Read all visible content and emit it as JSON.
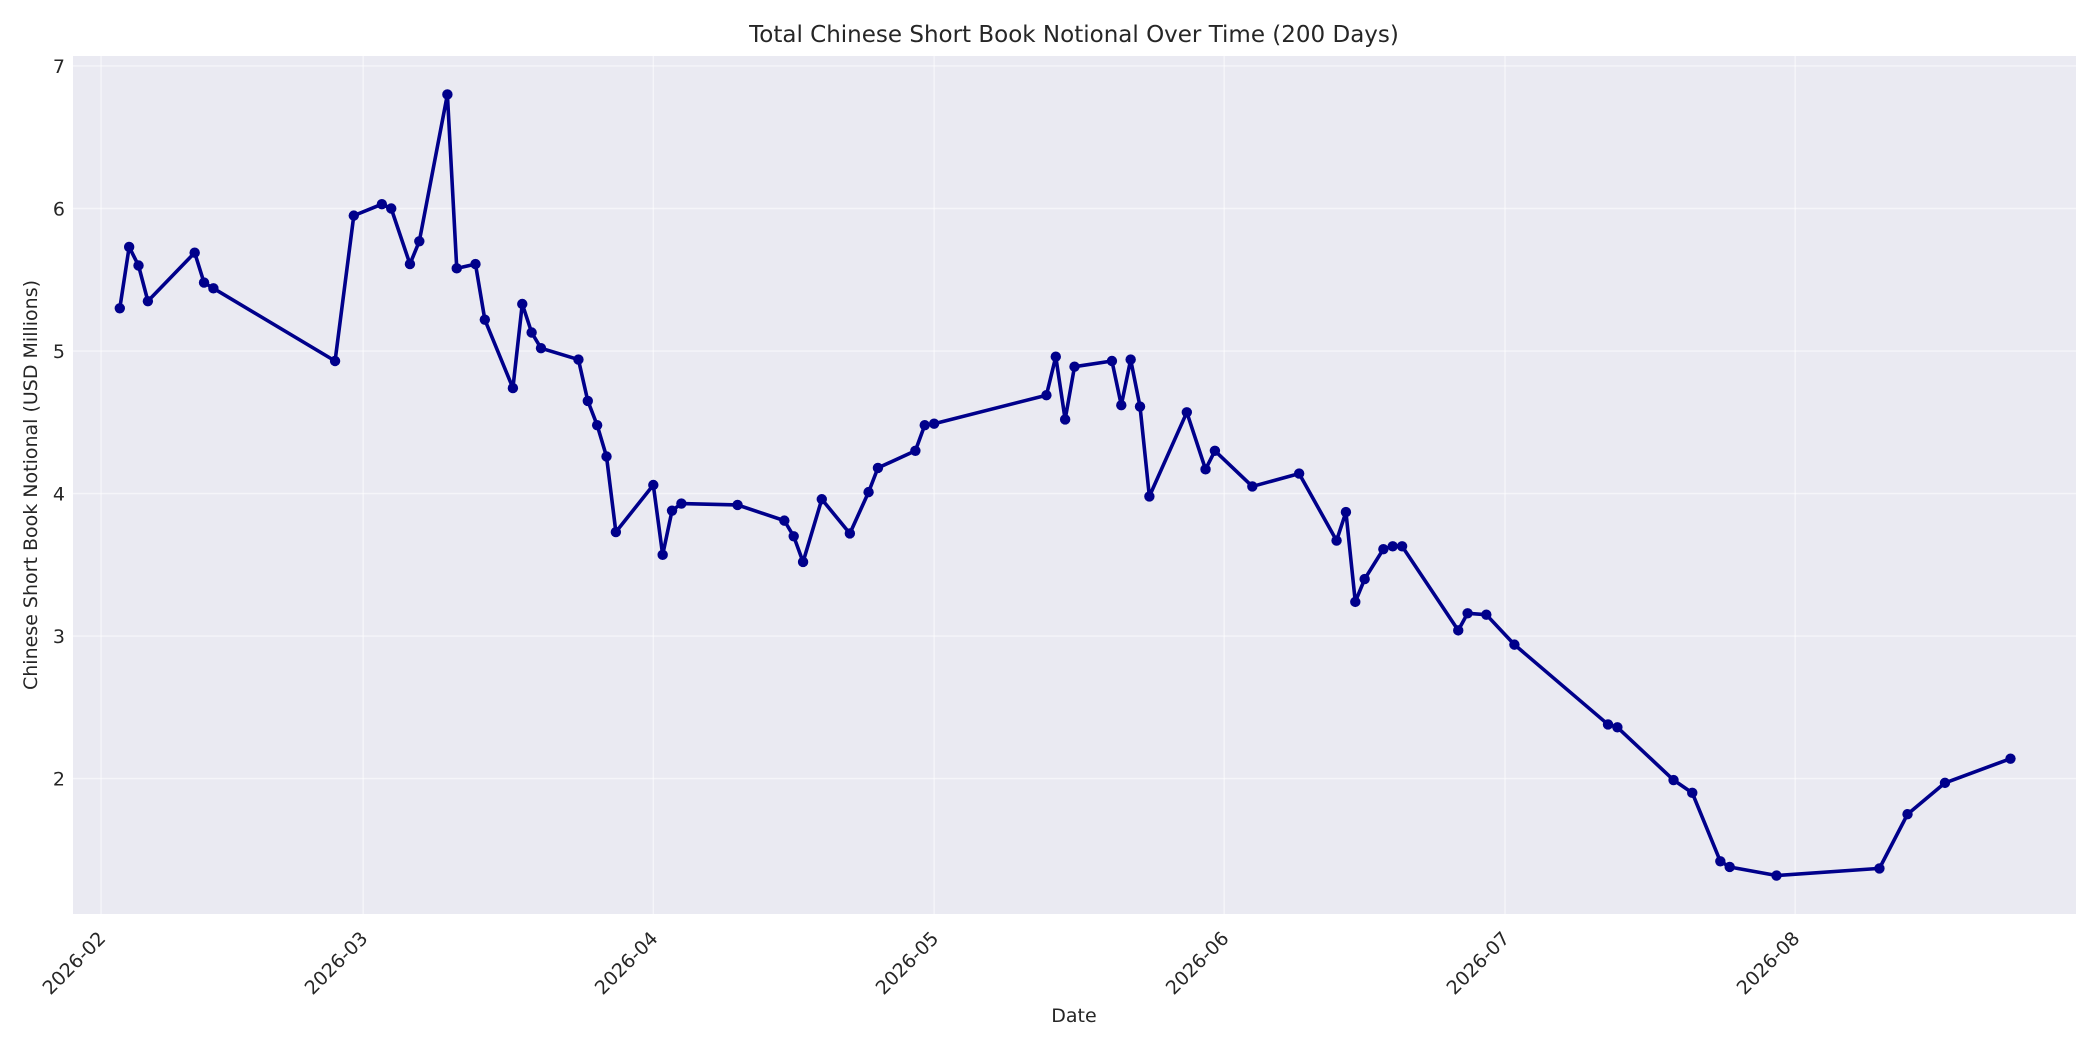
{
  "chart_data": {
    "type": "line",
    "title": "Total Chinese Short Book Notional Over Time (200 Days)",
    "xlabel": "Date",
    "ylabel": "Chinese Short Book Notional (USD Millions)",
    "x_ticks": [
      "2026-02",
      "2026-03",
      "2026-04",
      "2026-05",
      "2026-06",
      "2026-07",
      "2026-08"
    ],
    "x_tick_dates": [
      "2026-02-01",
      "2026-03-01",
      "2026-04-01",
      "2026-05-01",
      "2026-06-01",
      "2026-07-01",
      "2026-08-01"
    ],
    "y_ticks": [
      2,
      3,
      4,
      5,
      6,
      7
    ],
    "xlim": [
      "2026-01-29",
      "2026-08-31"
    ],
    "ylim": [
      1.05,
      7.07
    ],
    "grid": true,
    "legend": "none",
    "colors": {
      "line": "#00008b",
      "marker": "#00008b",
      "plot_background": "#eaeaf2",
      "grid": "#ffffff"
    },
    "series": [
      {
        "x": [
          "2026-02-03",
          "2026-02-04",
          "2026-02-05",
          "2026-02-06",
          "2026-02-11",
          "2026-02-12",
          "2026-02-13",
          "2026-02-26",
          "2026-02-28",
          "2026-03-03",
          "2026-03-04",
          "2026-03-06",
          "2026-03-07",
          "2026-03-10",
          "2026-03-11",
          "2026-03-13",
          "2026-03-14",
          "2026-03-17",
          "2026-03-18",
          "2026-03-19",
          "2026-03-20",
          "2026-03-24",
          "2026-03-25",
          "2026-03-26",
          "2026-03-27",
          "2026-03-28",
          "2026-04-01",
          "2026-04-02",
          "2026-04-03",
          "2026-04-04",
          "2026-04-10",
          "2026-04-15",
          "2026-04-16",
          "2026-04-17",
          "2026-04-19",
          "2026-04-22",
          "2026-04-24",
          "2026-04-25",
          "2026-04-29",
          "2026-04-30",
          "2026-05-01",
          "2026-05-13",
          "2026-05-14",
          "2026-05-15",
          "2026-05-16",
          "2026-05-20",
          "2026-05-21",
          "2026-05-22",
          "2026-05-23",
          "2026-05-24",
          "2026-05-28",
          "2026-05-30",
          "2026-05-31",
          "2026-06-04",
          "2026-06-09",
          "2026-06-13",
          "2026-06-14",
          "2026-06-15",
          "2026-06-16",
          "2026-06-18",
          "2026-06-19",
          "2026-06-20",
          "2026-06-26",
          "2026-06-27",
          "2026-06-29",
          "2026-07-02",
          "2026-07-12",
          "2026-07-13",
          "2026-07-19",
          "2026-07-21",
          "2026-07-24",
          "2026-07-25",
          "2026-07-30",
          "2026-08-10",
          "2026-08-13",
          "2026-08-17",
          "2026-08-24"
        ],
        "values": [
          5.3,
          5.73,
          5.6,
          5.35,
          5.69,
          5.48,
          5.44,
          4.93,
          5.95,
          6.03,
          6.0,
          5.61,
          5.77,
          6.8,
          5.58,
          5.61,
          5.22,
          4.74,
          5.33,
          5.13,
          5.02,
          4.94,
          4.65,
          4.48,
          4.26,
          3.73,
          4.06,
          3.57,
          3.88,
          3.93,
          3.92,
          3.81,
          3.7,
          3.52,
          3.96,
          3.72,
          4.01,
          4.18,
          4.3,
          4.48,
          4.49,
          4.69,
          4.96,
          4.52,
          4.89,
          4.93,
          4.62,
          4.94,
          4.61,
          3.98,
          4.57,
          4.17,
          4.3,
          4.05,
          4.14,
          3.67,
          3.87,
          3.24,
          3.4,
          3.61,
          3.63,
          3.63,
          3.04,
          3.16,
          3.15,
          2.94,
          2.38,
          2.36,
          1.99,
          1.9,
          1.42,
          1.38,
          1.32,
          1.37,
          1.75,
          1.97,
          2.14
        ]
      }
    ]
  }
}
